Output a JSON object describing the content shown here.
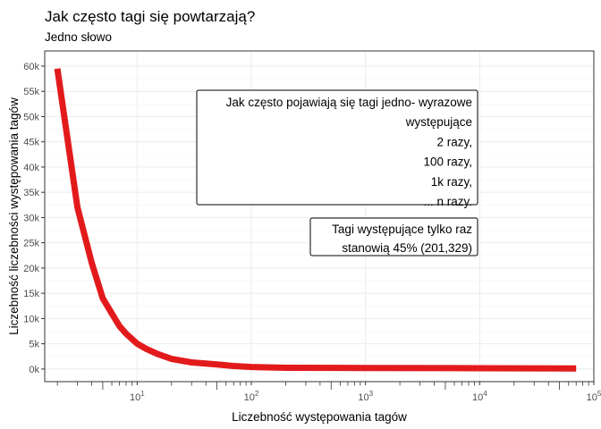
{
  "chart_data": {
    "type": "line",
    "title": "Jak często tagi się powtarzają?",
    "subtitle": "Jedno słowo",
    "xlabel": "Liczebność występowania tagów",
    "ylabel": "Liczebność liczebności występowania tagów",
    "x_scale": "log10",
    "xlim": [
      1.55,
      100000
    ],
    "ylim": [
      -2500,
      63000
    ],
    "x_ticks": [
      {
        "value": 10,
        "base": "10",
        "exp": "1"
      },
      {
        "value": 100,
        "base": "10",
        "exp": "2"
      },
      {
        "value": 1000,
        "base": "10",
        "exp": "3"
      },
      {
        "value": 10000,
        "base": "10",
        "exp": "4"
      },
      {
        "value": 100000,
        "base": "10",
        "exp": "5"
      }
    ],
    "y_ticks": [
      {
        "value": 0,
        "label": "0k"
      },
      {
        "value": 5000,
        "label": "5k"
      },
      {
        "value": 10000,
        "label": "10k"
      },
      {
        "value": 15000,
        "label": "15k"
      },
      {
        "value": 20000,
        "label": "20k"
      },
      {
        "value": 25000,
        "label": "25k"
      },
      {
        "value": 30000,
        "label": "30k"
      },
      {
        "value": 35000,
        "label": "35k"
      },
      {
        "value": 40000,
        "label": "40k"
      },
      {
        "value": 45000,
        "label": "45k"
      },
      {
        "value": 50000,
        "label": "50k"
      },
      {
        "value": 55000,
        "label": "55k"
      },
      {
        "value": 60000,
        "label": "60k"
      }
    ],
    "grid": true,
    "series": [
      {
        "color": "#e31a1c",
        "x": [
          2,
          3,
          4,
          5,
          6,
          7,
          8,
          10,
          12,
          15,
          20,
          30,
          50,
          70,
          100,
          200,
          1000,
          10000,
          70000
        ],
        "y": [
          59500,
          32000,
          21000,
          14000,
          11000,
          8500,
          7000,
          5000,
          4000,
          3000,
          2000,
          1300,
          900,
          600,
          400,
          250,
          200,
          150,
          100
        ]
      }
    ],
    "annotations": [
      {
        "lines": [
          "Jak często pojawiają się tagi jedno- wyrazowe",
          "występujące",
          "2 razy,",
          "100 razy,",
          "1k razy,",
          "... n razy."
        ]
      },
      {
        "lines": [
          "Tagi występujące tylko raz",
          "stanowią 45% (201,329)"
        ]
      }
    ]
  }
}
